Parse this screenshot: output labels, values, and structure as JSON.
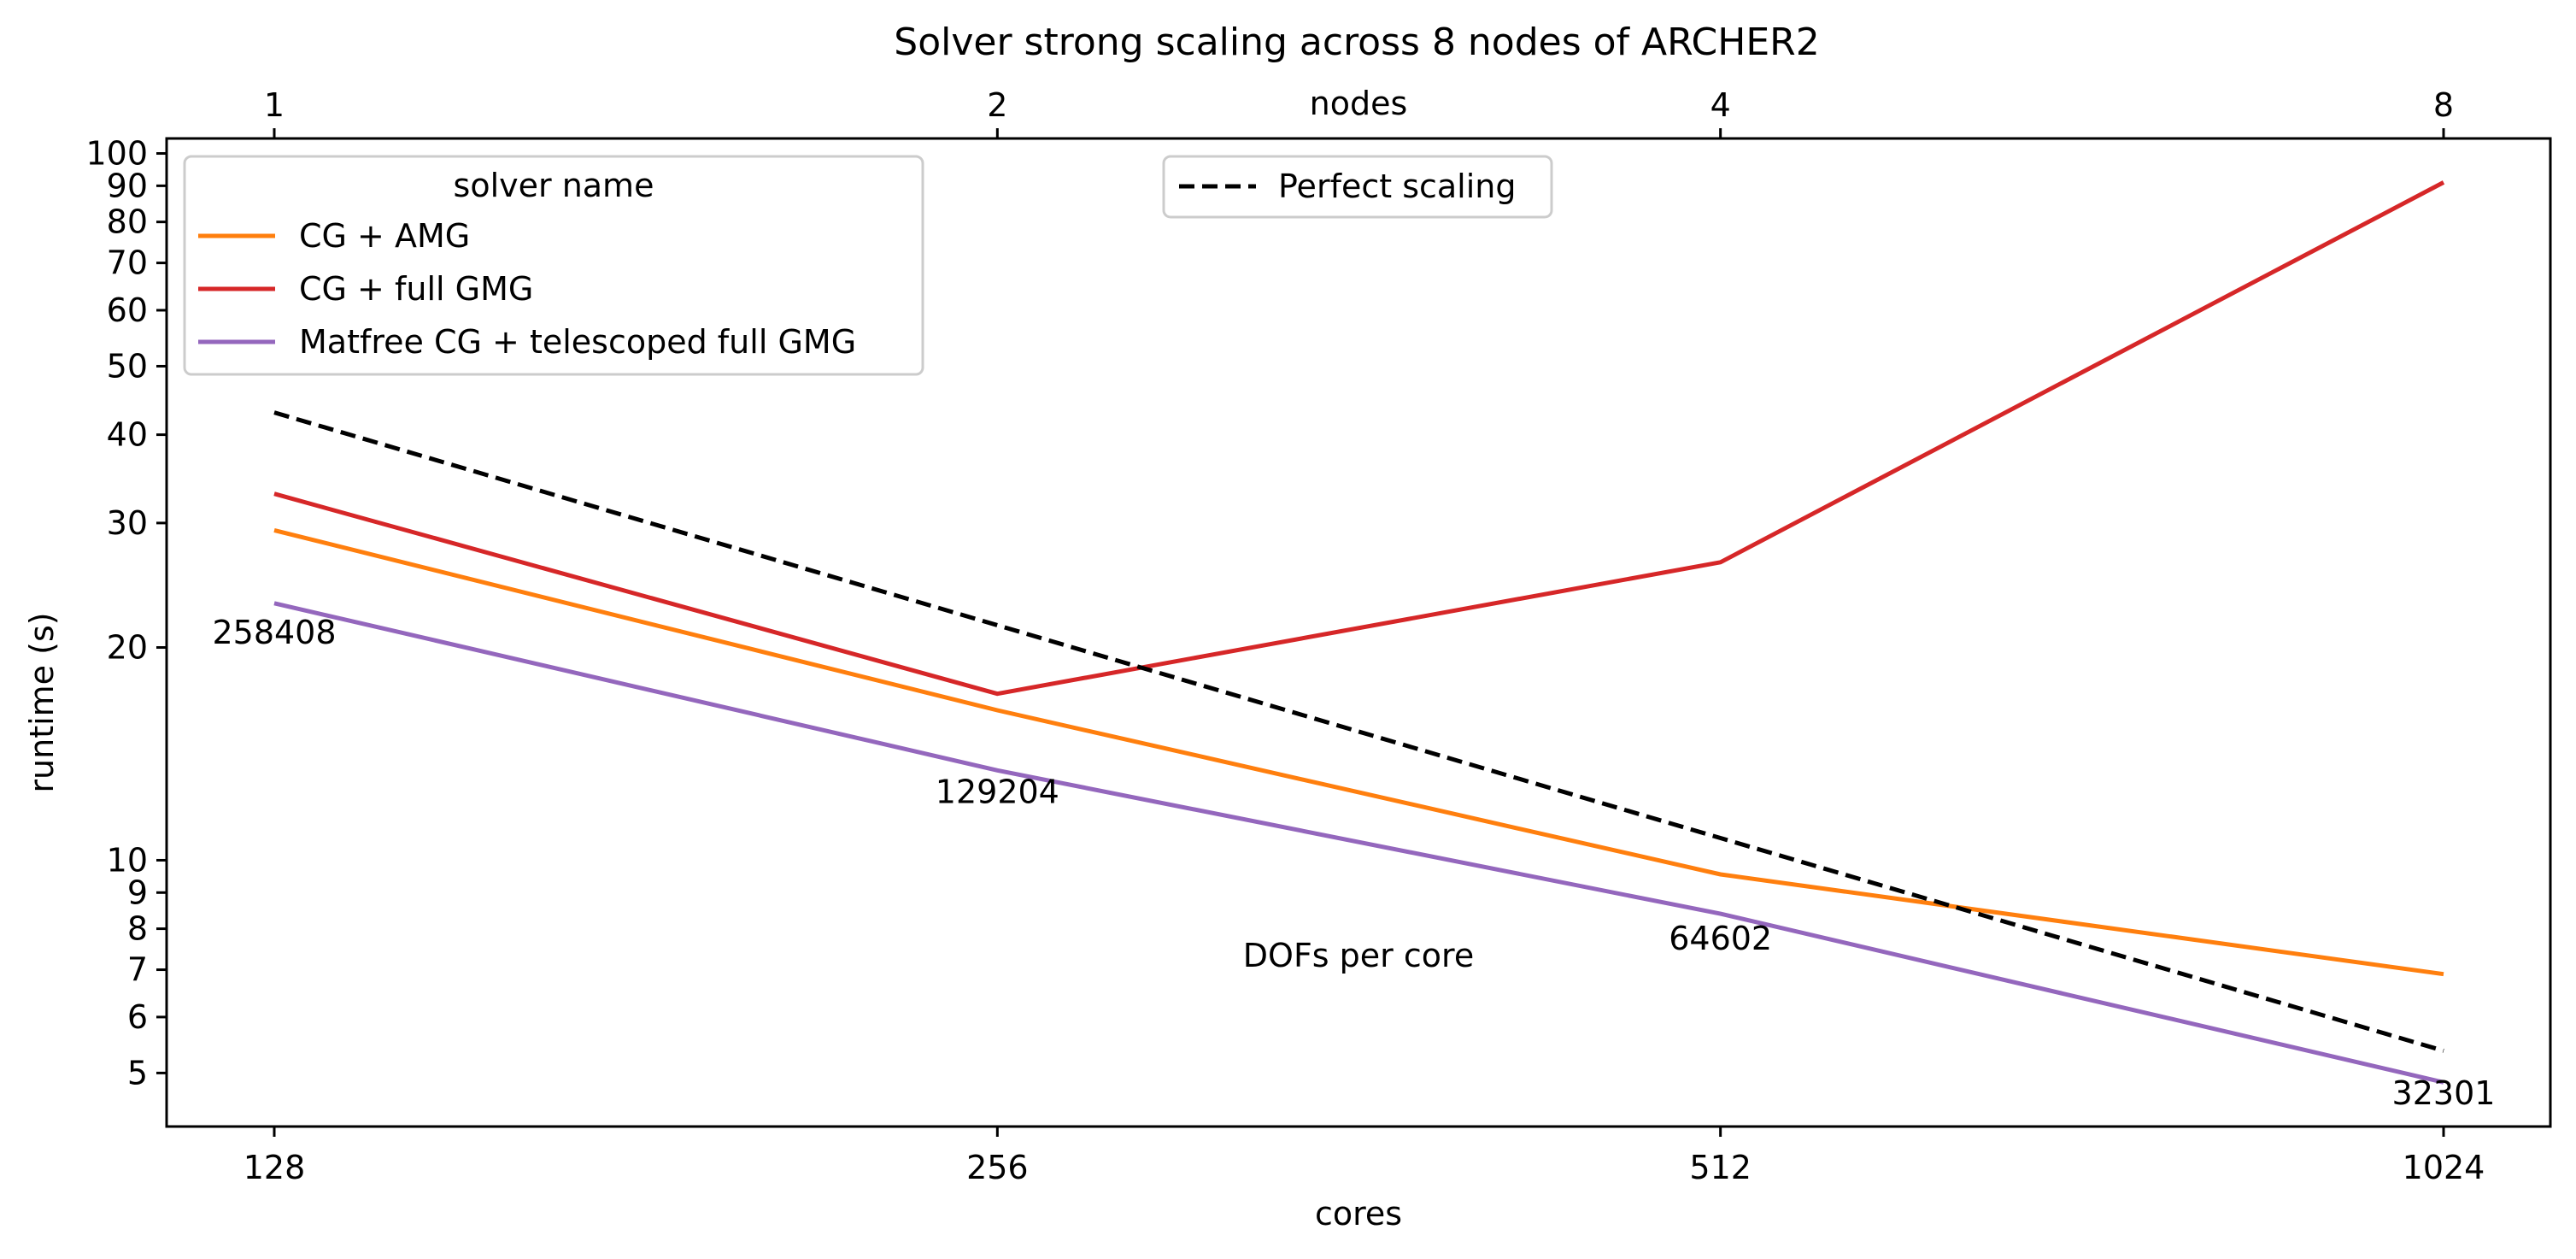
{
  "chart_data": {
    "type": "line",
    "title": "Solver strong scaling across 8 nodes of ARCHER2",
    "xlabel": "cores",
    "x2label": "nodes",
    "ylabel": "runtime (s)",
    "yscale": "log",
    "ylim": [
      4.2,
      105
    ],
    "x_categories": [
      "128",
      "256",
      "512",
      "1024"
    ],
    "x2_categories": [
      "1",
      "2",
      "4",
      "8"
    ],
    "y_ticks": [
      5,
      6,
      7,
      8,
      9,
      10,
      20,
      30,
      40,
      50,
      60,
      70,
      80,
      90,
      100
    ],
    "y_tick_labels": [
      "5",
      "6",
      "7",
      "8",
      "9",
      "10",
      "20",
      "30",
      "40",
      "50",
      "60",
      "70",
      "80",
      "90",
      "100"
    ],
    "legend_title": "solver name",
    "legend_placement": "top-left",
    "legend2_placement": "top-center",
    "series": [
      {
        "name": "CG + AMG",
        "color": "#ff7f0e",
        "style": "solid",
        "values": [
          29.3,
          16.3,
          9.55,
          6.9
        ]
      },
      {
        "name": "CG + full GMG",
        "color": "#d62728",
        "style": "solid",
        "values": [
          33.0,
          17.2,
          26.4,
          91.0
        ]
      },
      {
        "name": "Matfree CG + telescoped full GMG",
        "color": "#9467bd",
        "style": "solid",
        "values": [
          23.1,
          13.4,
          8.4,
          4.85
        ]
      },
      {
        "name": "Perfect scaling",
        "color": "#000000",
        "style": "dashed",
        "values": [
          43.0,
          21.5,
          10.75,
          5.375
        ]
      }
    ],
    "annotation_title": "DOFs per core",
    "annotations": [
      {
        "text": "258408",
        "x_index": 0,
        "y": 21.0
      },
      {
        "text": "129204",
        "x_index": 1,
        "y": 12.5
      },
      {
        "text": "64602",
        "x_index": 2,
        "y": 7.75
      },
      {
        "text": "32301",
        "x_index": 3,
        "y": 4.68
      }
    ],
    "grid": false
  }
}
